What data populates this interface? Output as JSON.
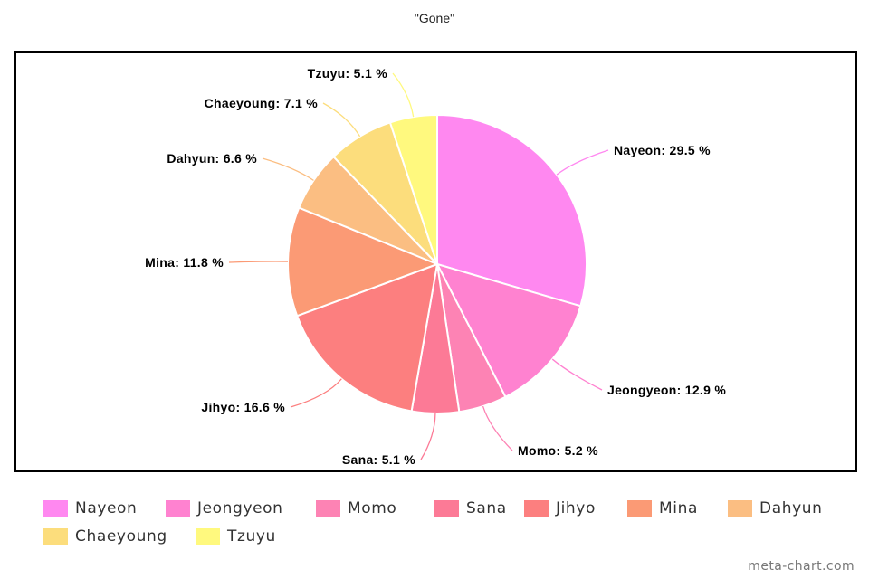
{
  "chart_data": {
    "type": "pie",
    "title": "\"Gone\"",
    "categories": [
      "Nayeon",
      "Jeongyeon",
      "Momo",
      "Sana",
      "Jihyo",
      "Mina",
      "Dahyun",
      "Chaeyoung",
      "Tzuyu"
    ],
    "values": [
      29.5,
      12.9,
      5.2,
      5.1,
      16.6,
      11.8,
      6.6,
      7.1,
      5.1
    ],
    "value_suffix": " %",
    "colors": [
      "#ff88f0",
      "#ff82d0",
      "#fd83b4",
      "#fc7a96",
      "#fc7f7f",
      "#fb9a75",
      "#fbbe82",
      "#fcdd7c",
      "#fff97e"
    ],
    "labels": [
      "Nayeon: 29.5 %",
      "Jeongyeon: 12.9 %",
      "Momo: 5.2 %",
      "Sana: 5.1 %",
      "Jihyo: 16.6 %",
      "Mina: 11.8 %",
      "Dahyun: 6.6 %",
      "Chaeyoung: 7.1 %",
      "Tzuyu: 5.1 %"
    ],
    "legend_position": "bottom"
  },
  "watermark": "meta-chart.com"
}
